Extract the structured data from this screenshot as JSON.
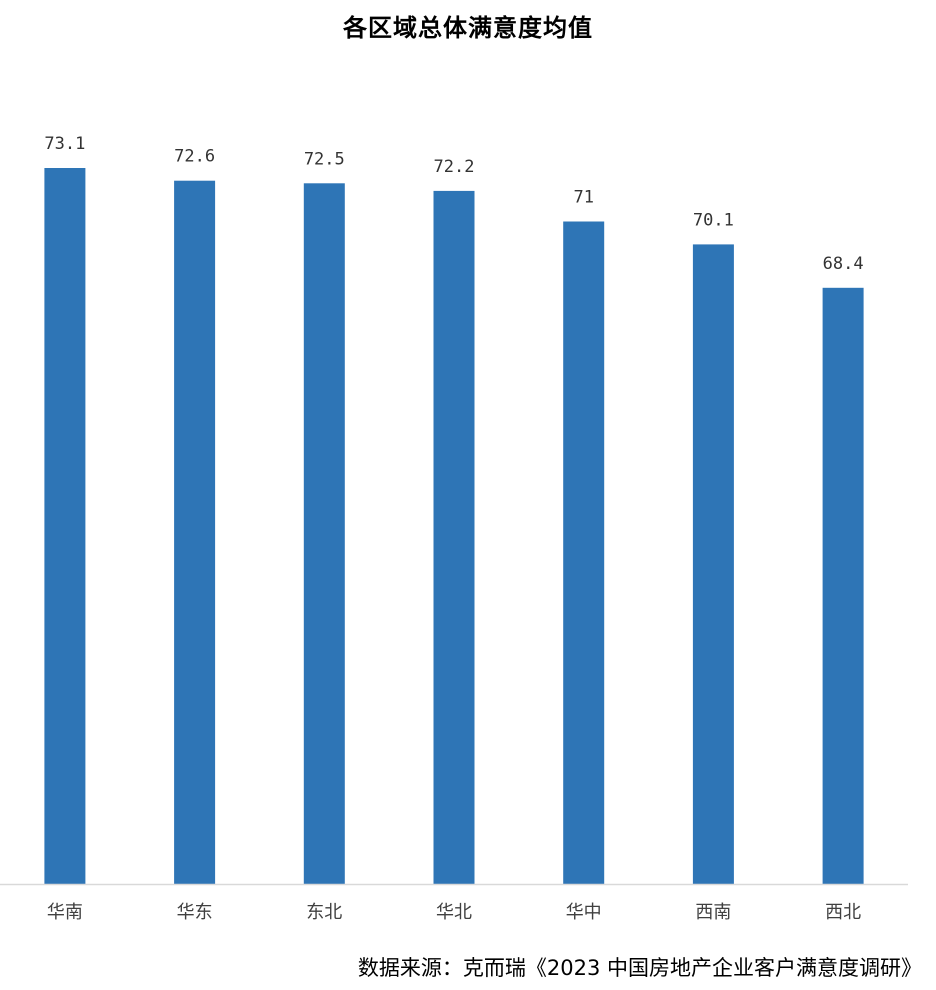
{
  "chart_data": {
    "type": "bar",
    "title": "各区域总体满意度均值",
    "categories": [
      "华南",
      "华东",
      "东北",
      "华北",
      "华中",
      "西南",
      "西北"
    ],
    "value_labels": [
      "73.1",
      "72.6",
      "72.5",
      "72.2",
      "71",
      "70.1",
      "68.4"
    ],
    "values": [
      73.1,
      72.6,
      72.5,
      72.2,
      71,
      70.1,
      68.4
    ],
    "ylim": [
      0,
      80
    ],
    "xlabel": "",
    "ylabel": "",
    "grid": false,
    "legend": "none",
    "bar_color": "#2E75B6",
    "axis_color": "#D9D9D9",
    "source": "数据来源：克而瑞《2023 中国房地产企业客户满意度调研》"
  }
}
